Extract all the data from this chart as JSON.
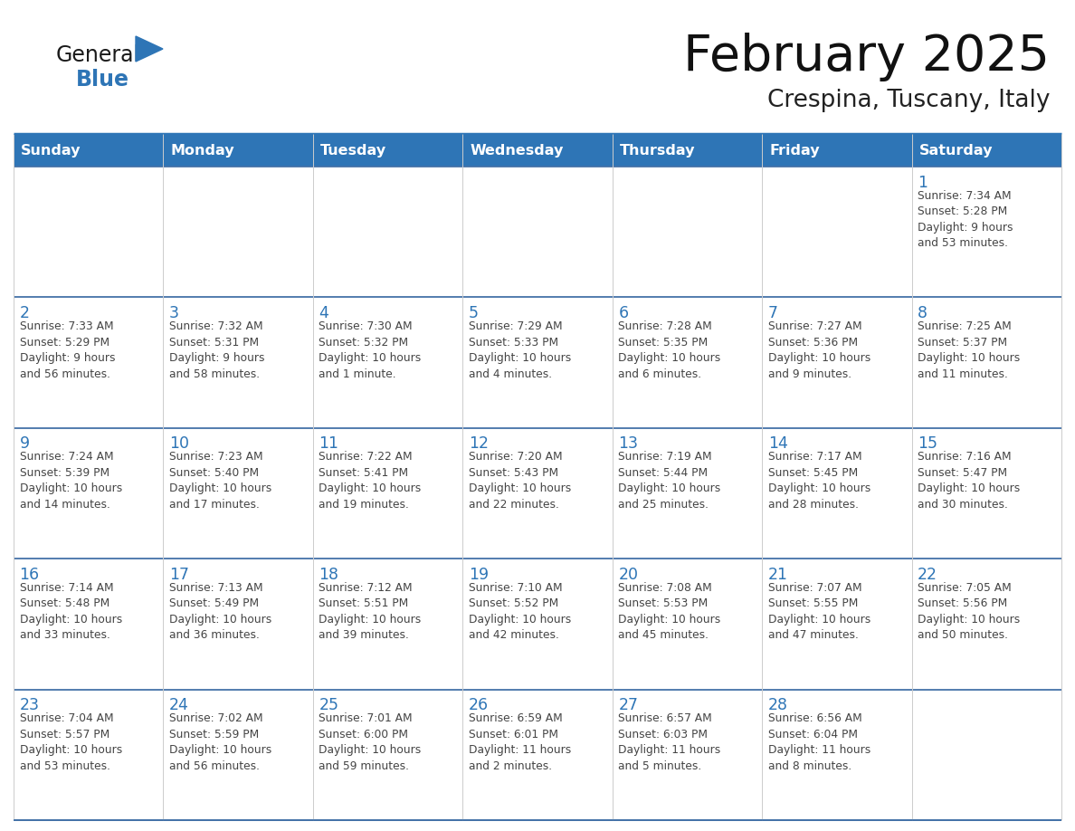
{
  "title": "February 2025",
  "subtitle": "Crespina, Tuscany, Italy",
  "header_color": "#2E75B6",
  "header_text_color": "#FFFFFF",
  "border_color": "#2E75B6",
  "row_line_color": "#4472A8",
  "day_number_color": "#2E75B6",
  "cell_text_color": "#444444",
  "days_of_week": [
    "Sunday",
    "Monday",
    "Tuesday",
    "Wednesday",
    "Thursday",
    "Friday",
    "Saturday"
  ],
  "logo_color_general": "#1a1a1a",
  "logo_color_blue": "#2E75B6",
  "weeks": [
    [
      {
        "day": null,
        "info": null
      },
      {
        "day": null,
        "info": null
      },
      {
        "day": null,
        "info": null
      },
      {
        "day": null,
        "info": null
      },
      {
        "day": null,
        "info": null
      },
      {
        "day": null,
        "info": null
      },
      {
        "day": 1,
        "info": "Sunrise: 7:34 AM\nSunset: 5:28 PM\nDaylight: 9 hours\nand 53 minutes."
      }
    ],
    [
      {
        "day": 2,
        "info": "Sunrise: 7:33 AM\nSunset: 5:29 PM\nDaylight: 9 hours\nand 56 minutes."
      },
      {
        "day": 3,
        "info": "Sunrise: 7:32 AM\nSunset: 5:31 PM\nDaylight: 9 hours\nand 58 minutes."
      },
      {
        "day": 4,
        "info": "Sunrise: 7:30 AM\nSunset: 5:32 PM\nDaylight: 10 hours\nand 1 minute."
      },
      {
        "day": 5,
        "info": "Sunrise: 7:29 AM\nSunset: 5:33 PM\nDaylight: 10 hours\nand 4 minutes."
      },
      {
        "day": 6,
        "info": "Sunrise: 7:28 AM\nSunset: 5:35 PM\nDaylight: 10 hours\nand 6 minutes."
      },
      {
        "day": 7,
        "info": "Sunrise: 7:27 AM\nSunset: 5:36 PM\nDaylight: 10 hours\nand 9 minutes."
      },
      {
        "day": 8,
        "info": "Sunrise: 7:25 AM\nSunset: 5:37 PM\nDaylight: 10 hours\nand 11 minutes."
      }
    ],
    [
      {
        "day": 9,
        "info": "Sunrise: 7:24 AM\nSunset: 5:39 PM\nDaylight: 10 hours\nand 14 minutes."
      },
      {
        "day": 10,
        "info": "Sunrise: 7:23 AM\nSunset: 5:40 PM\nDaylight: 10 hours\nand 17 minutes."
      },
      {
        "day": 11,
        "info": "Sunrise: 7:22 AM\nSunset: 5:41 PM\nDaylight: 10 hours\nand 19 minutes."
      },
      {
        "day": 12,
        "info": "Sunrise: 7:20 AM\nSunset: 5:43 PM\nDaylight: 10 hours\nand 22 minutes."
      },
      {
        "day": 13,
        "info": "Sunrise: 7:19 AM\nSunset: 5:44 PM\nDaylight: 10 hours\nand 25 minutes."
      },
      {
        "day": 14,
        "info": "Sunrise: 7:17 AM\nSunset: 5:45 PM\nDaylight: 10 hours\nand 28 minutes."
      },
      {
        "day": 15,
        "info": "Sunrise: 7:16 AM\nSunset: 5:47 PM\nDaylight: 10 hours\nand 30 minutes."
      }
    ],
    [
      {
        "day": 16,
        "info": "Sunrise: 7:14 AM\nSunset: 5:48 PM\nDaylight: 10 hours\nand 33 minutes."
      },
      {
        "day": 17,
        "info": "Sunrise: 7:13 AM\nSunset: 5:49 PM\nDaylight: 10 hours\nand 36 minutes."
      },
      {
        "day": 18,
        "info": "Sunrise: 7:12 AM\nSunset: 5:51 PM\nDaylight: 10 hours\nand 39 minutes."
      },
      {
        "day": 19,
        "info": "Sunrise: 7:10 AM\nSunset: 5:52 PM\nDaylight: 10 hours\nand 42 minutes."
      },
      {
        "day": 20,
        "info": "Sunrise: 7:08 AM\nSunset: 5:53 PM\nDaylight: 10 hours\nand 45 minutes."
      },
      {
        "day": 21,
        "info": "Sunrise: 7:07 AM\nSunset: 5:55 PM\nDaylight: 10 hours\nand 47 minutes."
      },
      {
        "day": 22,
        "info": "Sunrise: 7:05 AM\nSunset: 5:56 PM\nDaylight: 10 hours\nand 50 minutes."
      }
    ],
    [
      {
        "day": 23,
        "info": "Sunrise: 7:04 AM\nSunset: 5:57 PM\nDaylight: 10 hours\nand 53 minutes."
      },
      {
        "day": 24,
        "info": "Sunrise: 7:02 AM\nSunset: 5:59 PM\nDaylight: 10 hours\nand 56 minutes."
      },
      {
        "day": 25,
        "info": "Sunrise: 7:01 AM\nSunset: 6:00 PM\nDaylight: 10 hours\nand 59 minutes."
      },
      {
        "day": 26,
        "info": "Sunrise: 6:59 AM\nSunset: 6:01 PM\nDaylight: 11 hours\nand 2 minutes."
      },
      {
        "day": 27,
        "info": "Sunrise: 6:57 AM\nSunset: 6:03 PM\nDaylight: 11 hours\nand 5 minutes."
      },
      {
        "day": 28,
        "info": "Sunrise: 6:56 AM\nSunset: 6:04 PM\nDaylight: 11 hours\nand 8 minutes."
      },
      {
        "day": null,
        "info": null
      }
    ]
  ]
}
